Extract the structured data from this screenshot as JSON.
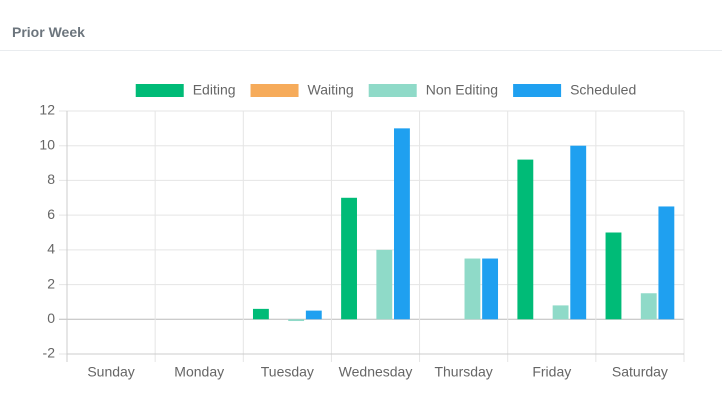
{
  "chart_data": {
    "type": "bar",
    "title": "Prior Week",
    "categories": [
      "Sunday",
      "Monday",
      "Tuesday",
      "Wednesday",
      "Thursday",
      "Friday",
      "Saturday"
    ],
    "series": [
      {
        "name": "Editing",
        "color": "#00bb77",
        "values": [
          0,
          0,
          0.6,
          7,
          0,
          9.2,
          5
        ]
      },
      {
        "name": "Waiting",
        "color": "#f6ab5a",
        "values": [
          0,
          0,
          0,
          0,
          0,
          0,
          0
        ]
      },
      {
        "name": "Non Editing",
        "color": "#8fdac8",
        "values": [
          0,
          0,
          -0.1,
          4,
          3.5,
          0.8,
          1.5
        ]
      },
      {
        "name": "Scheduled",
        "color": "#1fa0f0",
        "values": [
          0,
          0,
          0.5,
          11,
          3.5,
          10,
          6.5
        ]
      }
    ],
    "ylim": [
      -2,
      12
    ],
    "yticks": [
      -2,
      0,
      2,
      4,
      6,
      8,
      10,
      12
    ],
    "grid": true,
    "legend": "top"
  }
}
